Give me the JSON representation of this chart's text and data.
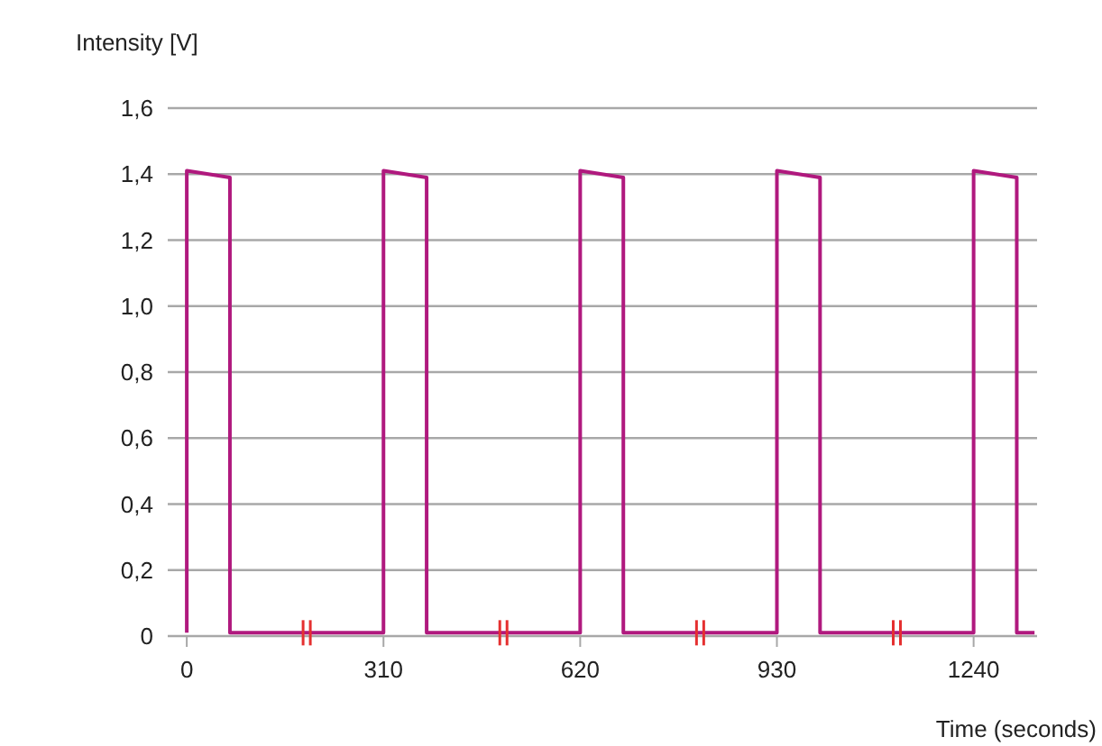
{
  "chart_data": {
    "type": "line",
    "xlabel": "Time (seconds)",
    "ylabel": "Intensity [V]",
    "x": [
      0,
      0,
      68,
      68,
      310,
      310,
      378,
      378,
      620,
      620,
      688,
      688,
      930,
      930,
      998,
      998,
      1240,
      1240,
      1308,
      1308,
      1336
    ],
    "series": [
      {
        "color": "#b0197e",
        "values": [
          0.01,
          1.41,
          1.39,
          0.01,
          0.01,
          1.41,
          1.39,
          0.01,
          0.01,
          1.41,
          1.39,
          0.01,
          0.01,
          1.41,
          1.39,
          0.01,
          0.01,
          1.41,
          1.39,
          0.01,
          0.01
        ]
      }
    ],
    "xlim": [
      -30,
      1340
    ],
    "xticks": [
      0,
      310,
      620,
      930,
      1240
    ],
    "ylim": [
      0,
      1.6
    ],
    "yticks": [
      0,
      {
        "value": 0.2,
        "label": "0,2"
      },
      {
        "value": 0.4,
        "label": "0,4"
      },
      {
        "value": 0.6,
        "label": "0,6"
      },
      {
        "value": 0.8,
        "label": "0,8"
      },
      {
        "value": 1.0,
        "label": "1,0"
      },
      {
        "value": 1.2,
        "label": "1,2"
      },
      {
        "value": 1.4,
        "label": "1,4"
      },
      {
        "value": 1.6,
        "label": "1,6"
      }
    ],
    "grid": "y",
    "line_style": "solid"
  }
}
